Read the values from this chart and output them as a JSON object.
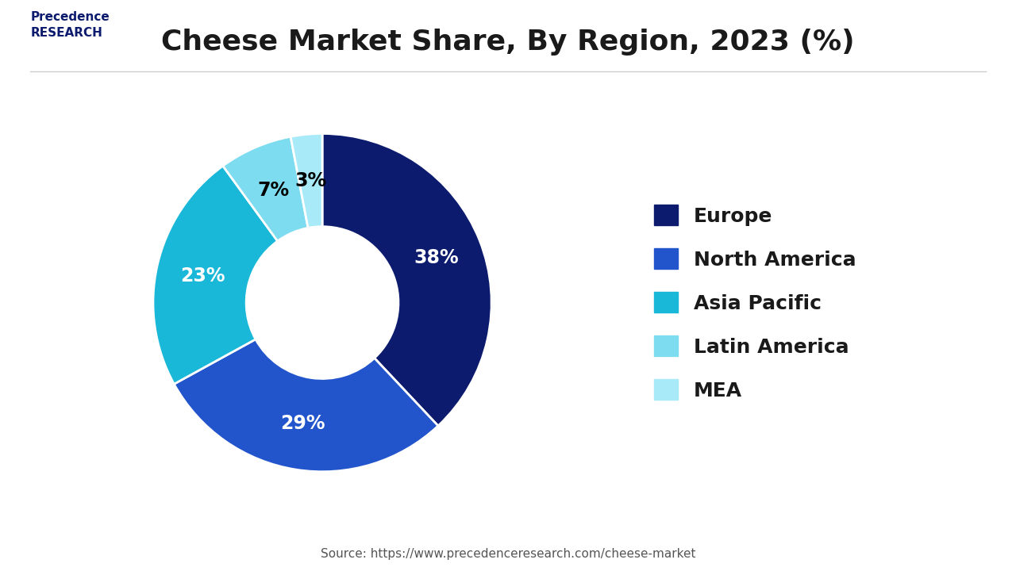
{
  "title": "Cheese Market Share, By Region, 2023 (%)",
  "labels": [
    "Europe",
    "North America",
    "Asia Pacific",
    "Latin America",
    "MEA"
  ],
  "values": [
    38,
    29,
    23,
    7,
    3
  ],
  "colors": [
    "#0d1b6e",
    "#2255cc",
    "#1ab8d8",
    "#7ddcef",
    "#a8eaf8"
  ],
  "text_colors": [
    "white",
    "white",
    "white",
    "black",
    "black"
  ],
  "source": "Source: https://www.precedenceresearch.com/cheese-market",
  "legend_colors": [
    "#0d1b6e",
    "#2255cc",
    "#1ab8d8",
    "#7ddcef",
    "#a8eaf8"
  ],
  "background_color": "#ffffff",
  "title_fontsize": 26,
  "label_fontsize": 17,
  "legend_fontsize": 18
}
